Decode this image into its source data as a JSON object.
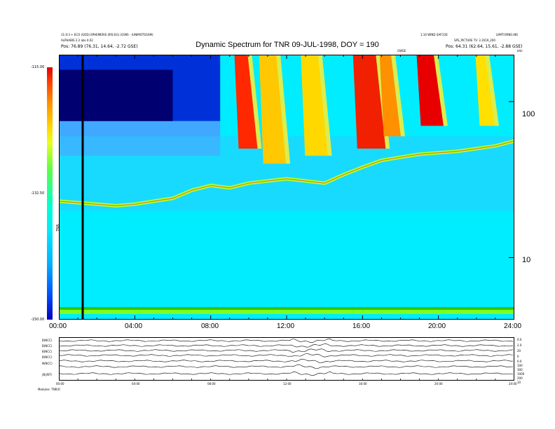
{
  "header": {
    "left_line1": "11:0:3 + ECO (GOD) EPHEMERIS (IRS-EG) (GSM) - (UNIMOTSGSM)",
    "left_line2": "ALPHABIS 2.2 abs 0.02",
    "left_line3": "Pos:     76.89 (76.31, 14.64, -2.72 GSE)",
    "right_line1": "1:10 WIND SAFCOE",
    "right_line1b": "LIMIT:ORNS:ABI",
    "right_line2": "SPS_PICTURE  TV: 3 2019_200",
    "right_line3": "Pos:     64.31 (62.64, 15.61, -2.88 GSE)",
    "center_label": "GWSE",
    "right_corner": "kHz"
  },
  "chart_data": {
    "type": "heatmap",
    "title": "Dynamic Spectrum for TNR 09-JUL-1998, DOY = 190",
    "x_ticks": [
      "00:00",
      "04:00",
      "08:00",
      "12:00",
      "16:00",
      "20:00",
      "24:00"
    ],
    "xlim_hours": [
      0,
      24
    ],
    "y_scale": "log",
    "ylabel": "kHz",
    "y_ticks": [
      "100",
      "10"
    ],
    "y_tick_values": [
      100,
      10
    ],
    "ylim_khz": [
      4,
      200
    ],
    "colorbar": {
      "label": "TNR",
      "ticks": [
        "-115.00",
        "-132.50",
        "-150.00"
      ],
      "tick_values": [
        -115,
        -132.5,
        -150
      ],
      "range": [
        -150,
        -115
      ]
    },
    "description_features": {
      "background_level": "cyan",
      "low_band_green": true
    },
    "bursts": [
      {
        "t": 9.6,
        "f_high": 200,
        "f_low": 50,
        "width": 0.7,
        "color": "#ff2800"
      },
      {
        "t": 11.0,
        "f_high": 200,
        "f_low": 40,
        "width": 0.9,
        "color": "#ffc800"
      },
      {
        "t": 13.2,
        "f_high": 200,
        "f_low": 45,
        "width": 0.9,
        "color": "#ffd800"
      },
      {
        "t": 16.1,
        "f_high": 200,
        "f_low": 50,
        "width": 1.2,
        "color": "#f02000"
      },
      {
        "t": 17.2,
        "f_high": 200,
        "f_low": 60,
        "width": 0.6,
        "color": "#ff9000"
      },
      {
        "t": 19.3,
        "f_high": 200,
        "f_low": 70,
        "width": 0.9,
        "color": "#e80000"
      },
      {
        "t": 22.2,
        "f_high": 200,
        "f_low": 70,
        "width": 0.5,
        "color": "#ffe000"
      }
    ],
    "plasma_line": {
      "t": [
        0,
        1,
        2,
        3,
        4,
        5,
        6,
        7,
        8,
        9,
        10,
        11,
        12,
        13,
        14,
        15,
        16,
        17,
        18,
        19,
        20,
        21,
        22,
        23,
        24
      ],
      "f_khz": [
        23,
        22.5,
        22,
        21.5,
        22,
        23,
        24,
        27,
        29,
        28,
        30,
        31,
        32,
        31,
        30,
        34,
        38,
        42,
        44,
        46,
        47,
        48,
        50,
        52,
        56
      ]
    },
    "lower_panels": {
      "labels": [
        "B(NCC)",
        "B(NCC)",
        "B(NCC)",
        "B(NCC)",
        "N(NCC)",
        "",
        "|B|(NT)"
      ],
      "right_labels": [
        "0.0",
        "2.0",
        "20",
        "0",
        "0.0",
        "100",
        "300",
        "1000",
        "200",
        "10"
      ],
      "x_ticks": [
        "00:00",
        "04:00",
        "08:00",
        "12:00",
        "16:00",
        "20:00",
        "24:00"
      ],
      "footer": "Modules: TNR(f)"
    }
  }
}
